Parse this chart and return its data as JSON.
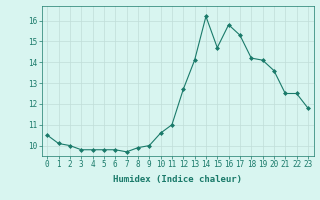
{
  "x": [
    0,
    1,
    2,
    3,
    4,
    5,
    6,
    7,
    8,
    9,
    10,
    11,
    12,
    13,
    14,
    15,
    16,
    17,
    18,
    19,
    20,
    21,
    22,
    23
  ],
  "y": [
    10.5,
    10.1,
    10.0,
    9.8,
    9.8,
    9.8,
    9.8,
    9.7,
    9.9,
    10.0,
    10.6,
    11.0,
    12.7,
    14.1,
    16.2,
    14.7,
    15.8,
    15.3,
    14.2,
    14.1,
    13.6,
    12.5,
    12.5,
    11.8
  ],
  "line_color": "#1a7a6a",
  "marker": "D",
  "marker_size": 2,
  "bg_color": "#d8f5f0",
  "grid_color": "#c0ddd8",
  "xlabel": "Humidex (Indice chaleur)",
  "ylim": [
    9.5,
    16.7
  ],
  "xlim": [
    -0.5,
    23.5
  ],
  "yticks": [
    10,
    11,
    12,
    13,
    14,
    15,
    16
  ],
  "xticks": [
    0,
    1,
    2,
    3,
    4,
    5,
    6,
    7,
    8,
    9,
    10,
    11,
    12,
    13,
    14,
    15,
    16,
    17,
    18,
    19,
    20,
    21,
    22,
    23
  ],
  "label_fontsize": 6.5,
  "tick_fontsize": 5.5
}
